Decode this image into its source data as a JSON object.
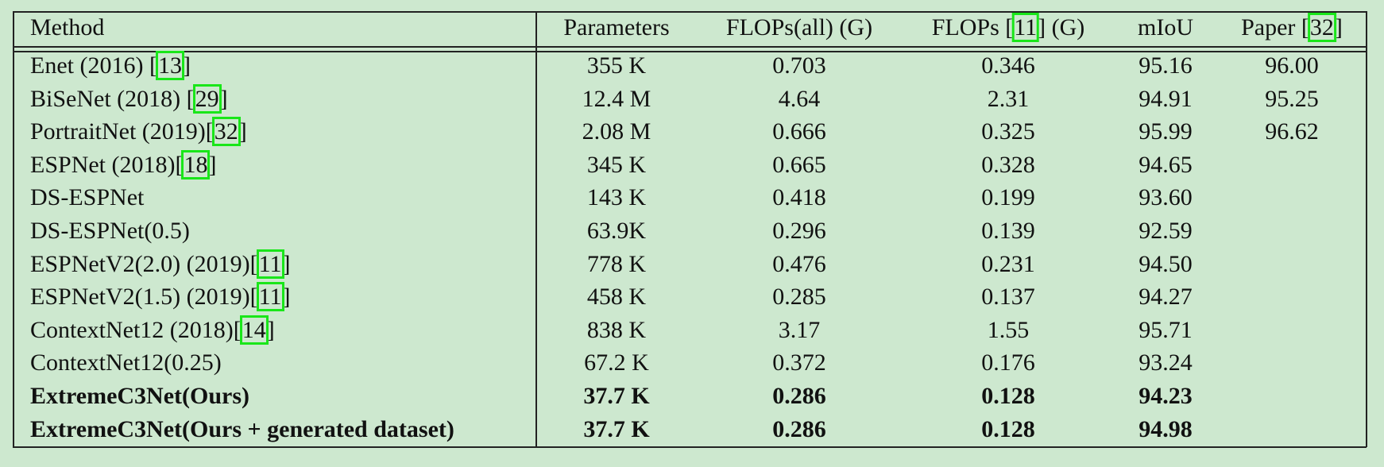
{
  "table": {
    "header": [
      "Method",
      "Parameters",
      "FLOPs(all) (G)",
      {
        "pre": "FLOPs [",
        "cite": "11",
        "post": "] (G)"
      },
      "mIoU",
      {
        "pre": "Paper [",
        "cite": "32",
        "post": "]"
      }
    ],
    "rows": [
      {
        "cells": [
          {
            "pre": "Enet (2016) [",
            "cite": "13",
            "post": "]"
          },
          "355 K",
          "0.703",
          "0.346",
          "95.16",
          "96.00"
        ]
      },
      {
        "cells": [
          {
            "pre": "BiSeNet (2018) [",
            "cite": "29",
            "post": "]"
          },
          "12.4 M",
          "4.64",
          "2.31",
          "94.91",
          "95.25"
        ]
      },
      {
        "cells": [
          {
            "pre": "PortraitNet (2019)[",
            "cite": "32",
            "post": "]"
          },
          "2.08 M",
          "0.666",
          "0.325",
          "95.99",
          "96.62"
        ]
      },
      {
        "cells": [
          {
            "pre": "ESPNet (2018)[",
            "cite": "18",
            "post": "]"
          },
          "345 K",
          "0.665",
          "0.328",
          "94.65"
        ]
      },
      {
        "cells": [
          "DS-ESPNet",
          "143 K",
          "0.418",
          "0.199",
          "93.60"
        ]
      },
      {
        "cells": [
          "DS-ESPNet(0.5)",
          "63.9K",
          "0.296",
          "0.139",
          "92.59"
        ]
      },
      {
        "cells": [
          {
            "pre": "ESPNetV2(2.0) (2019)[",
            "cite": "11",
            "post": "]"
          },
          "778 K",
          "0.476",
          "0.231",
          "94.50"
        ]
      },
      {
        "cells": [
          {
            "pre": "ESPNetV2(1.5) (2019)[",
            "cite": "11",
            "post": "]"
          },
          "458 K",
          "0.285",
          "0.137",
          "94.27"
        ]
      },
      {
        "cells": [
          {
            "pre": "ContextNet12 (2018)[",
            "cite": "14",
            "post": "]"
          },
          "838 K",
          "3.17",
          "1.55",
          "95.71"
        ]
      },
      {
        "cells": [
          "ContextNet12(0.25)",
          "67.2 K",
          "0.372",
          "0.176",
          "93.24"
        ]
      },
      {
        "cells": [
          "ExtremeC3Net(Ours)",
          "37.7 K",
          "0.286",
          "0.128",
          "94.23"
        ],
        "bold": true
      },
      {
        "cells": [
          "ExtremeC3Net(Ours + generated dataset)",
          "37.7 K",
          "0.286",
          "0.128",
          "94.98"
        ],
        "bold": true
      }
    ]
  }
}
